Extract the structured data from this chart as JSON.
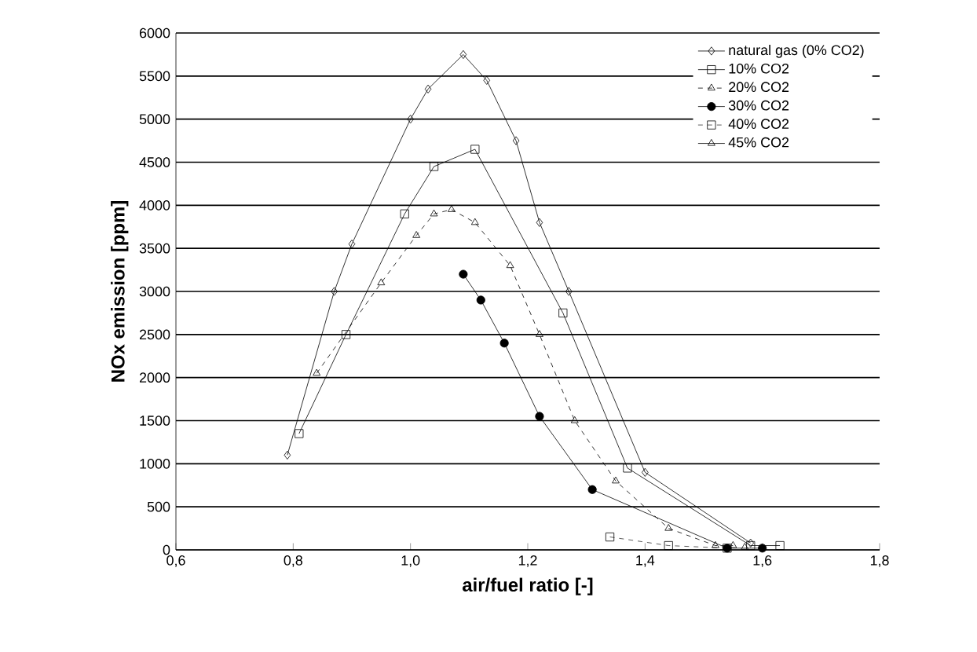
{
  "chart_data": {
    "type": "line",
    "xlabel": "air/fuel ratio [-]",
    "ylabel": "NOx emission [ppm]",
    "xlim": [
      0.6,
      1.8
    ],
    "xticks": [
      {
        "value": 0.6,
        "label": "0,6"
      },
      {
        "value": 0.8,
        "label": "0,8"
      },
      {
        "value": 1.0,
        "label": "1,0"
      },
      {
        "value": 1.2,
        "label": "1,2"
      },
      {
        "value": 1.4,
        "label": "1,4"
      },
      {
        "value": 1.6,
        "label": "1,6"
      },
      {
        "value": 1.8,
        "label": "1,8"
      }
    ],
    "ylim": [
      0,
      6000
    ],
    "yticks": [
      0,
      500,
      1000,
      1500,
      2000,
      2500,
      3000,
      3500,
      4000,
      4500,
      5000,
      5500,
      6000
    ],
    "grid": "y",
    "legend": "top right",
    "series": [
      {
        "name": "natural gas (0% CO2)",
        "color": "#000000",
        "marker": "diamond",
        "line_style": "solid",
        "x": [
          0.79,
          0.87,
          0.9,
          1.0,
          1.03,
          1.09,
          1.13,
          1.18,
          1.22,
          1.27,
          1.4,
          1.58
        ],
        "values": [
          1100,
          3000,
          3550,
          5000,
          5350,
          5750,
          5450,
          4750,
          3800,
          3000,
          900,
          80
        ]
      },
      {
        "name": "10% CO2",
        "color": "#000000",
        "marker": "square",
        "line_style": "solid",
        "x": [
          0.81,
          0.89,
          0.99,
          1.04,
          1.11,
          1.26,
          1.37,
          1.58,
          1.63
        ],
        "values": [
          1350,
          2500,
          3900,
          4450,
          4650,
          2750,
          950,
          50,
          50
        ]
      },
      {
        "name": "20% CO2",
        "color": "#000000",
        "marker": "triangle",
        "line_style": "dashed",
        "x": [
          0.84,
          0.95,
          1.01,
          1.04,
          1.07,
          1.11,
          1.17,
          1.22,
          1.28,
          1.35,
          1.44,
          1.52,
          1.55
        ],
        "values": [
          2050,
          3100,
          3650,
          3900,
          3950,
          3800,
          3300,
          2500,
          1500,
          800,
          250,
          50,
          50
        ]
      },
      {
        "name": "30% CO2",
        "color": "#000000",
        "marker": "circle",
        "line_style": "solid",
        "x": [
          1.09,
          1.12,
          1.16,
          1.22,
          1.31,
          1.54,
          1.6
        ],
        "values": [
          3200,
          2900,
          2400,
          1550,
          700,
          20,
          20
        ]
      },
      {
        "name": "40% CO2",
        "color": "#333333",
        "marker": "square",
        "line_style": "dashed",
        "x": [
          1.34,
          1.44,
          1.54
        ],
        "values": [
          150,
          50,
          20
        ]
      },
      {
        "name": "45% CO2",
        "color": "#000000",
        "marker": "triangle",
        "line_style": "solid",
        "x": [
          1.57
        ],
        "values": [
          30
        ]
      }
    ]
  }
}
